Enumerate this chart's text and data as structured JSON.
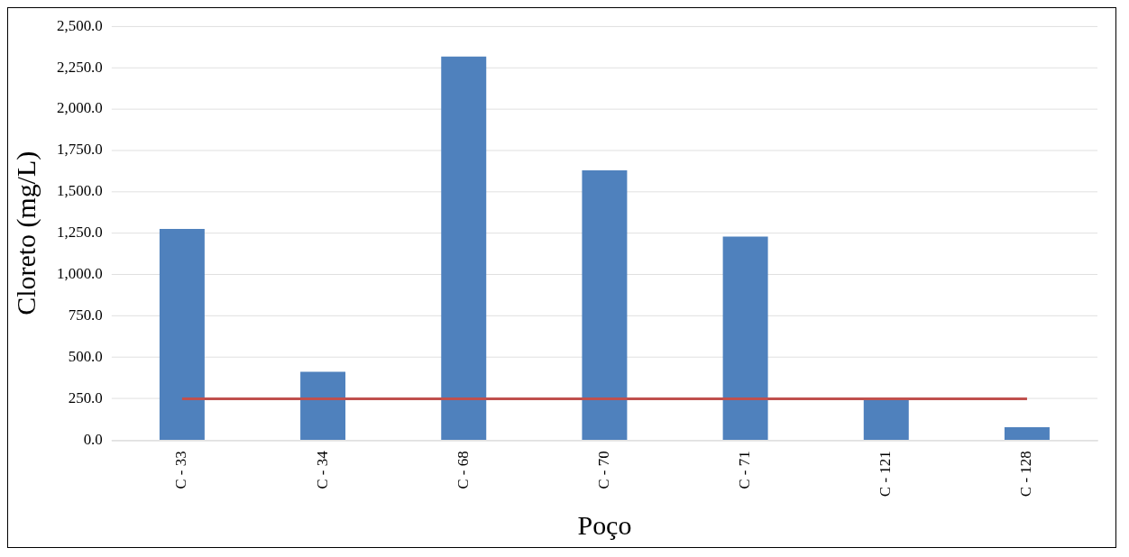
{
  "chart_data": {
    "type": "bar",
    "xlabel": "Poço",
    "ylabel": "Cloreto (mg/L)",
    "categories": [
      "C - 33",
      "C - 34",
      "C - 68",
      "C - 70",
      "C - 71",
      "C - 121",
      "C - 128"
    ],
    "series": [
      {
        "color": "#4f81bd",
        "values": [
          1276,
          413,
          2317,
          1630,
          1230,
          250,
          79
        ]
      },
      {
        "type": "line",
        "color": "#c0504d",
        "values": [
          250,
          250,
          250,
          250,
          250,
          250,
          250
        ]
      }
    ],
    "ylim": [
      0,
      2500
    ],
    "yticks": [
      {
        "value": 0,
        "label": "0.0"
      },
      {
        "value": 250,
        "label": "250.0"
      },
      {
        "value": 500,
        "label": "500.0"
      },
      {
        "value": 750,
        "label": "750.0"
      },
      {
        "value": 1000,
        "label": "1,000.0"
      },
      {
        "value": 1250,
        "label": "1,250.0"
      },
      {
        "value": 1500,
        "label": "1,500.0"
      },
      {
        "value": 1750,
        "label": "1,750.0"
      },
      {
        "value": 2000,
        "label": "2,000.0"
      },
      {
        "value": 2250,
        "label": "2,250.0"
      },
      {
        "value": 2500,
        "label": "2,500.0"
      }
    ],
    "grid": "y",
    "legend": false
  }
}
